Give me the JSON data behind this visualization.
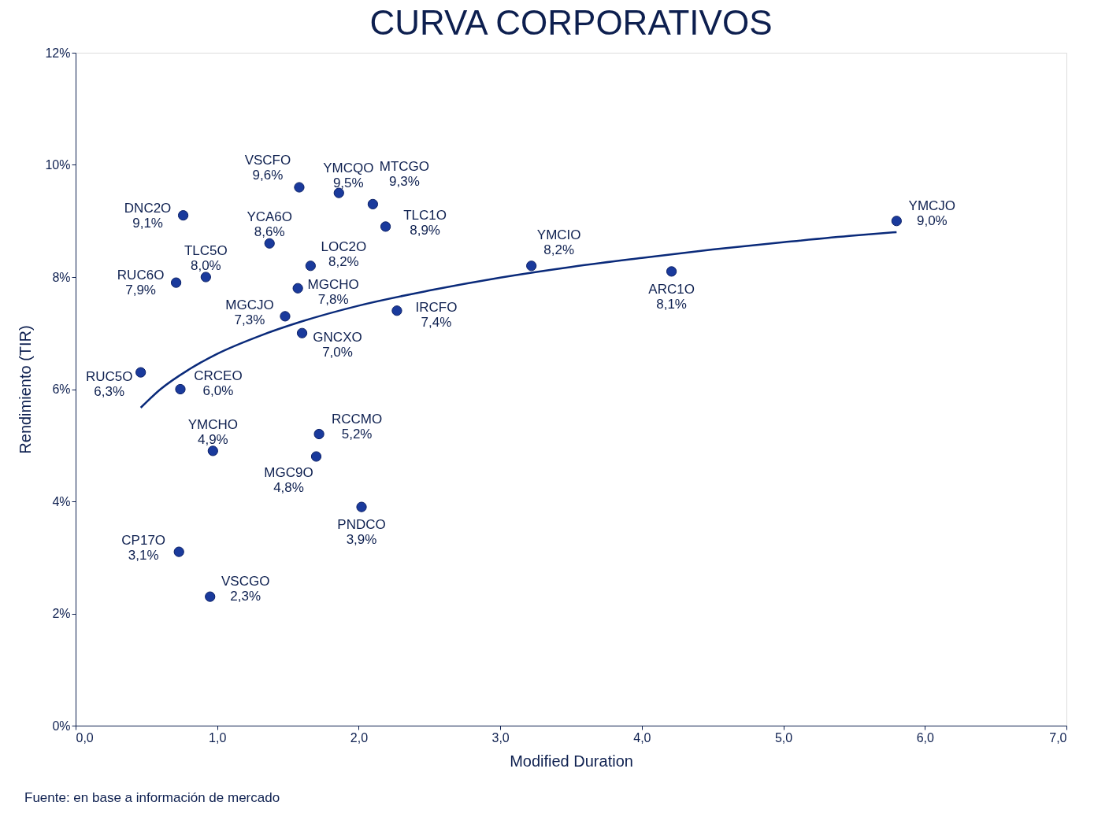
{
  "chart_data": {
    "type": "scatter",
    "title": "CURVA CORPORATIVOS",
    "xlabel": "Modified Duration",
    "ylabel": "Rendimiento (TIR)",
    "annotations": [
      "Fuente: en base a información de mercado"
    ],
    "xlim": [
      0,
      7
    ],
    "ylim": [
      0,
      12
    ],
    "xticks": [
      {
        "value": 0,
        "label": "0,0"
      },
      {
        "value": 1,
        "label": "1,0"
      },
      {
        "value": 2,
        "label": "2,0"
      },
      {
        "value": 3,
        "label": "3,0"
      },
      {
        "value": 4,
        "label": "4,0"
      },
      {
        "value": 5,
        "label": "5,0"
      },
      {
        "value": 6,
        "label": "6,0"
      },
      {
        "value": 7,
        "label": "7,0"
      }
    ],
    "yticks": [
      {
        "value": 0,
        "label": "0%"
      },
      {
        "value": 2,
        "label": "2%"
      },
      {
        "value": 4,
        "label": "4%"
      },
      {
        "value": 6,
        "label": "6%"
      },
      {
        "value": 8,
        "label": "8%"
      },
      {
        "value": 10,
        "label": "10%"
      },
      {
        "value": 12,
        "label": "12%"
      }
    ],
    "grid": false,
    "legend": false,
    "marker": "circle",
    "series": [
      {
        "name": "YMCJO",
        "color": "#1a3a9c",
        "x": [
          5.8
        ],
        "values": [
          9.0
        ],
        "value_labels": [
          "9,0%"
        ]
      },
      {
        "name": "VSCFO",
        "color": "#1a3a9c",
        "x": [
          1.58
        ],
        "values": [
          9.6
        ],
        "value_labels": [
          "9,6%"
        ]
      },
      {
        "name": "YMCQO",
        "color": "#1a3a9c",
        "x": [
          1.86
        ],
        "values": [
          9.5
        ],
        "value_labels": [
          "9,5%"
        ]
      },
      {
        "name": "MTCGO",
        "color": "#1a3a9c",
        "x": [
          2.1
        ],
        "values": [
          9.3
        ],
        "value_labels": [
          "9,3%"
        ]
      },
      {
        "name": "DNC2O",
        "color": "#1a3a9c",
        "x": [
          0.76
        ],
        "values": [
          9.1
        ],
        "value_labels": [
          "9,1%"
        ]
      },
      {
        "name": "TLC1O",
        "color": "#1a3a9c",
        "x": [
          2.19
        ],
        "values": [
          8.9
        ],
        "value_labels": [
          "8,9%"
        ]
      },
      {
        "name": "YCA6O",
        "color": "#1a3a9c",
        "x": [
          1.37
        ],
        "values": [
          8.6
        ],
        "value_labels": [
          "8,6%"
        ]
      },
      {
        "name": "LOC2O",
        "color": "#1a3a9c",
        "x": [
          1.66
        ],
        "values": [
          8.2
        ],
        "value_labels": [
          "8,2%"
        ]
      },
      {
        "name": "TLC5O",
        "color": "#1a3a9c",
        "x": [
          0.92
        ],
        "values": [
          8.0
        ],
        "value_labels": [
          "8,0%"
        ]
      },
      {
        "name": "RUC6O",
        "color": "#1a3a9c",
        "x": [
          0.71
        ],
        "values": [
          7.9
        ],
        "value_labels": [
          "7,9%"
        ]
      },
      {
        "name": "MGCHO",
        "color": "#1a3a9c",
        "x": [
          1.57
        ],
        "values": [
          7.8
        ],
        "value_labels": [
          "7,8%"
        ]
      },
      {
        "name": "YMCIO",
        "color": "#1a3a9c",
        "x": [
          3.22
        ],
        "values": [
          8.2
        ],
        "value_labels": [
          "8,2%"
        ]
      },
      {
        "name": "ARC1O",
        "color": "#1a3a9c",
        "x": [
          4.21
        ],
        "values": [
          8.1
        ],
        "value_labels": [
          "8,1%"
        ]
      },
      {
        "name": "MGCJO",
        "color": "#1a3a9c",
        "x": [
          1.48
        ],
        "values": [
          7.3
        ],
        "value_labels": [
          "7,3%"
        ]
      },
      {
        "name": "IRCFO",
        "color": "#1a3a9c",
        "x": [
          2.27
        ],
        "values": [
          7.4
        ],
        "value_labels": [
          "7,4%"
        ]
      },
      {
        "name": "GNCXO",
        "color": "#1a3a9c",
        "x": [
          1.6
        ],
        "values": [
          7.0
        ],
        "value_labels": [
          "7,0%"
        ]
      },
      {
        "name": "RUC5O",
        "color": "#1a3a9c",
        "x": [
          0.46
        ],
        "values": [
          6.3
        ],
        "value_labels": [
          "6,3%"
        ]
      },
      {
        "name": "CRCEO",
        "color": "#1a3a9c",
        "x": [
          0.74
        ],
        "values": [
          6.0
        ],
        "value_labels": [
          "6,0%"
        ]
      },
      {
        "name": "RCCMO",
        "color": "#1a3a9c",
        "x": [
          1.72
        ],
        "values": [
          5.2
        ],
        "value_labels": [
          "5,2%"
        ]
      },
      {
        "name": "YMCHO",
        "color": "#1a3a9c",
        "x": [
          0.97
        ],
        "values": [
          4.9
        ],
        "value_labels": [
          "4,9%"
        ]
      },
      {
        "name": "MGC9O",
        "color": "#1a3a9c",
        "x": [
          1.7
        ],
        "values": [
          4.8
        ],
        "value_labels": [
          "4,8%"
        ]
      },
      {
        "name": "PNDCO",
        "color": "#1a3a9c",
        "x": [
          2.02
        ],
        "values": [
          3.9
        ],
        "value_labels": [
          "3,9%"
        ]
      },
      {
        "name": "CP17O",
        "color": "#1a3a9c",
        "x": [
          0.73
        ],
        "values": [
          3.1
        ],
        "value_labels": [
          "3,1%"
        ]
      },
      {
        "name": "VSCGO",
        "color": "#1a3a9c",
        "x": [
          0.95
        ],
        "values": [
          2.3
        ],
        "value_labels": [
          "2,3%"
        ]
      },
      {
        "type": "line",
        "color": "#0a2a7a",
        "marker": "none",
        "x": [
          0.46,
          0.6,
          0.8,
          1.0,
          1.3,
          1.6,
          2.0,
          2.5,
          3.0,
          3.5,
          4.0,
          4.5,
          5.0,
          5.5,
          5.8
        ],
        "values": [
          5.67,
          6.0,
          6.35,
          6.63,
          6.95,
          7.21,
          7.49,
          7.76,
          7.99,
          8.18,
          8.34,
          8.49,
          8.62,
          8.74,
          8.8
        ]
      }
    ]
  }
}
